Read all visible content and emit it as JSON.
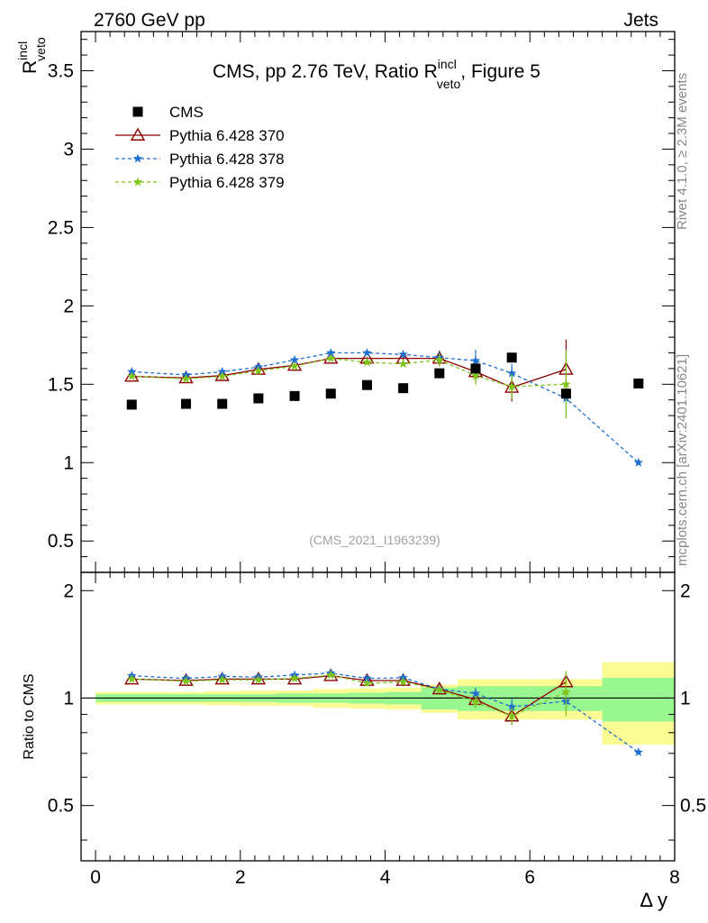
{
  "header": {
    "left": "2760 GeV pp",
    "right": "Jets"
  },
  "side_text": {
    "rivet": "Rivet 4.1.0, ≥ 2.3M events",
    "mcplots": "mcplots.cern.ch [arXiv:2401.10621]"
  },
  "chart_data": [
    {
      "type": "scatter",
      "panel": "main",
      "title": "CMS, pp 2.76 TeV, Ratio R",
      "title_sup": "incl",
      "title_sub": "veto",
      "title_suffix": ", Figure 5",
      "ylabel": "R",
      "ylabel_sup": "incl",
      "ylabel_sub": "veto",
      "ylim": [
        0.3,
        3.75
      ],
      "xlim": [
        -0.2,
        8.0
      ],
      "yticks": [
        0.5,
        1,
        1.5,
        2,
        2.5,
        3,
        3.5
      ],
      "ytick_labels": [
        "0.5",
        "1",
        "1.5",
        "2",
        "2.5",
        "3",
        "3.5"
      ],
      "watermark": "(CMS_2021_I1963239)",
      "series": [
        {
          "name": "CMS",
          "marker": "square",
          "color": "#000000",
          "x": [
            0.5,
            1.25,
            1.75,
            2.25,
            2.75,
            3.25,
            3.75,
            4.25,
            4.75,
            5.25,
            5.75,
            6.5,
            7.5
          ],
          "values": [
            1.37,
            1.375,
            1.375,
            1.41,
            1.425,
            1.44,
            1.495,
            1.475,
            1.57,
            1.6,
            1.67,
            1.44,
            1.505
          ]
        },
        {
          "name": "Pythia 6.428 370",
          "marker": "triangle",
          "color": "#8b0000",
          "dash": "solid",
          "x": [
            0.5,
            1.25,
            1.75,
            2.25,
            2.75,
            3.25,
            3.75,
            4.25,
            4.75,
            5.25,
            5.75,
            6.5
          ],
          "values": [
            1.55,
            1.54,
            1.555,
            1.595,
            1.62,
            1.665,
            1.665,
            1.665,
            1.665,
            1.58,
            1.48,
            1.595
          ],
          "errors": [
            0.01,
            0.01,
            0.01,
            0.01,
            0.01,
            0.01,
            0.01,
            0.01,
            0.05,
            0.06,
            0.09,
            0.19
          ]
        },
        {
          "name": "Pythia 6.428 378",
          "marker": "star",
          "color": "#1f6fd0",
          "dash": "dashed",
          "x": [
            0.5,
            1.25,
            1.75,
            2.25,
            2.75,
            3.25,
            3.75,
            4.25,
            4.75,
            5.25,
            5.75,
            6.5,
            7.5
          ],
          "values": [
            1.58,
            1.56,
            1.58,
            1.61,
            1.655,
            1.7,
            1.7,
            1.69,
            1.67,
            1.65,
            1.57,
            1.41,
            1.0
          ],
          "errors": [
            0.01,
            0.01,
            0.01,
            0.01,
            0.01,
            0.01,
            0.01,
            0.01,
            0.04,
            0.07,
            0.06,
            0.1,
            0.0
          ]
        },
        {
          "name": "Pythia 6.428 379",
          "marker": "star",
          "color": "#7ec51a",
          "dash": "dashed",
          "x": [
            0.5,
            1.25,
            1.75,
            2.25,
            2.75,
            3.25,
            3.75,
            4.25,
            4.75,
            5.25,
            5.75,
            6.5
          ],
          "values": [
            1.55,
            1.535,
            1.55,
            1.585,
            1.615,
            1.665,
            1.64,
            1.63,
            1.655,
            1.555,
            1.485,
            1.5
          ],
          "errors": [
            0.01,
            0.01,
            0.01,
            0.01,
            0.01,
            0.01,
            0.01,
            0.01,
            0.04,
            0.06,
            0.08,
            0.22
          ]
        }
      ]
    },
    {
      "type": "scatter",
      "panel": "ratio",
      "ylabel": "Ratio to CMS",
      "xlabel": "Δ y",
      "ylim": [
        0.35,
        2.25
      ],
      "xlim": [
        -0.2,
        8.0
      ],
      "xticks": [
        0,
        2,
        4,
        6,
        8
      ],
      "xtick_labels": [
        "0",
        "2",
        "4",
        "6",
        "8"
      ],
      "yticks": [
        0.5,
        1,
        2
      ],
      "ytick_labels": [
        "0.5",
        "1",
        "2"
      ],
      "bands": {
        "edges": [
          0.0,
          1.0,
          1.5,
          2.0,
          2.5,
          3.0,
          3.5,
          4.0,
          4.5,
          5.0,
          5.5,
          6.0,
          7.0,
          8.0
        ],
        "stat_halfwidth": [
          0.025,
          0.025,
          0.025,
          0.025,
          0.03,
          0.03,
          0.035,
          0.04,
          0.07,
          0.08,
          0.08,
          0.08,
          0.14
        ],
        "syst_halfwidth": [
          0.04,
          0.04,
          0.045,
          0.05,
          0.05,
          0.06,
          0.065,
          0.07,
          0.09,
          0.13,
          0.13,
          0.13,
          0.26
        ],
        "stat_color": "#99f790",
        "syst_color": "#fbfb94"
      },
      "series": [
        {
          "name": "Pythia 6.428 370",
          "marker": "triangle",
          "color": "#8b0000",
          "dash": "solid",
          "x": [
            0.5,
            1.25,
            1.75,
            2.25,
            2.75,
            3.25,
            3.75,
            4.25,
            4.75,
            5.25,
            5.75,
            6.5
          ],
          "values": [
            1.13,
            1.12,
            1.13,
            1.13,
            1.13,
            1.155,
            1.12,
            1.12,
            1.06,
            0.99,
            0.89,
            1.11
          ],
          "errors": [
            0.005,
            0.005,
            0.005,
            0.005,
            0.005,
            0.005,
            0.005,
            0.005,
            0.02,
            0.04,
            0.05,
            0.07
          ]
        },
        {
          "name": "Pythia 6.428 378",
          "marker": "star",
          "color": "#1f6fd0",
          "dash": "dashed",
          "x": [
            0.5,
            1.25,
            1.75,
            2.25,
            2.75,
            3.25,
            3.75,
            4.25,
            4.75,
            5.25,
            5.75,
            6.5,
            7.5
          ],
          "values": [
            1.155,
            1.135,
            1.15,
            1.145,
            1.16,
            1.175,
            1.135,
            1.14,
            1.06,
            1.03,
            0.945,
            0.98,
            0.705
          ],
          "errors": [
            0.005,
            0.005,
            0.005,
            0.005,
            0.005,
            0.005,
            0.005,
            0.005,
            0.02,
            0.04,
            0.05,
            0.06,
            0.0
          ]
        },
        {
          "name": "Pythia 6.428 379",
          "marker": "star",
          "color": "#7ec51a",
          "dash": "dashed",
          "x": [
            0.5,
            1.25,
            1.75,
            2.25,
            2.75,
            3.25,
            3.75,
            4.25,
            4.75,
            5.25,
            5.75,
            6.5
          ],
          "values": [
            1.13,
            1.115,
            1.125,
            1.125,
            1.135,
            1.16,
            1.1,
            1.11,
            1.055,
            0.975,
            0.89,
            1.04
          ],
          "errors": [
            0.005,
            0.005,
            0.005,
            0.005,
            0.005,
            0.005,
            0.005,
            0.005,
            0.02,
            0.04,
            0.05,
            0.15
          ]
        }
      ]
    }
  ]
}
